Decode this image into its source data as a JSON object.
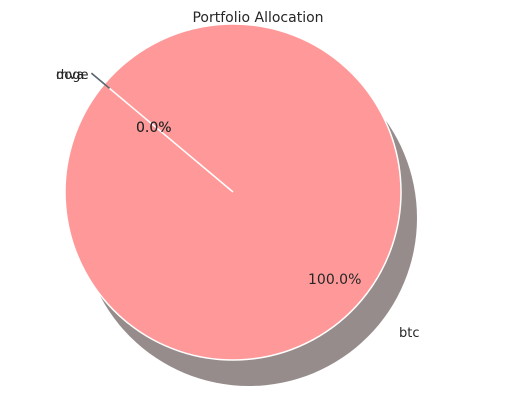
{
  "chart_data": {
    "type": "pie",
    "title": "Portfolio Allocation",
    "slices": [
      {
        "label": "doge",
        "value": 0.0,
        "pct_label": "0.0%",
        "color": "#5b6770",
        "exploded": true
      },
      {
        "label": "mva",
        "value": 0.0,
        "pct_label": "0.0%",
        "color": "#5b6770",
        "exploded": true
      },
      {
        "label": "btc",
        "value": 100.0,
        "pct_label": "100.0%",
        "color": "#ff9999",
        "exploded": false
      }
    ],
    "start_angle_deg": 140,
    "shadow": true
  }
}
